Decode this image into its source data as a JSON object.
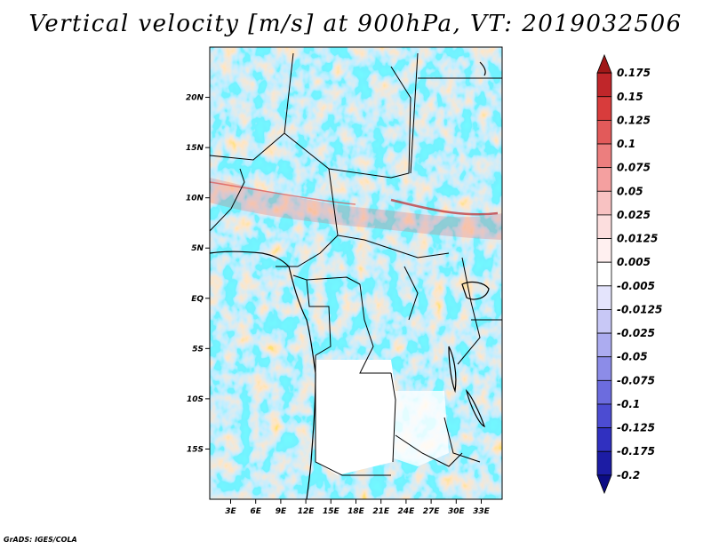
{
  "chart_data": {
    "type": "heatmap",
    "title": "Vertical velocity [m/s] at 900hPa, VT: 2019032506",
    "variable": "Vertical velocity",
    "units": "m/s",
    "level": "900hPa",
    "valid_time": "2019032506",
    "x_range_deg": [
      0.5,
      35.5
    ],
    "y_range_deg": [
      -20.0,
      25.0
    ],
    "x_ticks": [
      {
        "value": 3,
        "label": "3E"
      },
      {
        "value": 6,
        "label": "6E"
      },
      {
        "value": 9,
        "label": "9E"
      },
      {
        "value": 12,
        "label": "12E"
      },
      {
        "value": 15,
        "label": "15E"
      },
      {
        "value": 18,
        "label": "18E"
      },
      {
        "value": 21,
        "label": "21E"
      },
      {
        "value": 24,
        "label": "24E"
      },
      {
        "value": 27,
        "label": "27E"
      },
      {
        "value": 30,
        "label": "30E"
      },
      {
        "value": 33,
        "label": "33E"
      }
    ],
    "y_ticks": [
      {
        "value": 20,
        "label": "20N"
      },
      {
        "value": 15,
        "label": "15N"
      },
      {
        "value": 10,
        "label": "10N"
      },
      {
        "value": 5,
        "label": "5N"
      },
      {
        "value": 0,
        "label": "EQ"
      },
      {
        "value": -5,
        "label": "5S"
      },
      {
        "value": -10,
        "label": "10S"
      },
      {
        "value": -15,
        "label": "15S"
      }
    ],
    "colorbar": {
      "levels": [
        "0.175",
        "0.15",
        "0.125",
        "0.1",
        "0.075",
        "0.05",
        "0.025",
        "0.0125",
        "0.005",
        "-0.005",
        "-0.0125",
        "-0.025",
        "-0.05",
        "-0.075",
        "-0.1",
        "-0.125",
        "-0.175",
        "-0.2"
      ],
      "colors": [
        "#a01818",
        "#c0262a",
        "#d83c3c",
        "#e25a5a",
        "#ec7e7e",
        "#f4a0a0",
        "#f8c2c2",
        "#fcdede",
        "#fff0f0",
        "#ffffff",
        "#e4e4fc",
        "#c8c8f6",
        "#acacf0",
        "#8c8ce8",
        "#6c6cde",
        "#4c4cd2",
        "#3030c0",
        "#1c1ca4",
        "#0c0c84"
      ]
    }
  },
  "credit": "GrADS: IGES/COLA"
}
